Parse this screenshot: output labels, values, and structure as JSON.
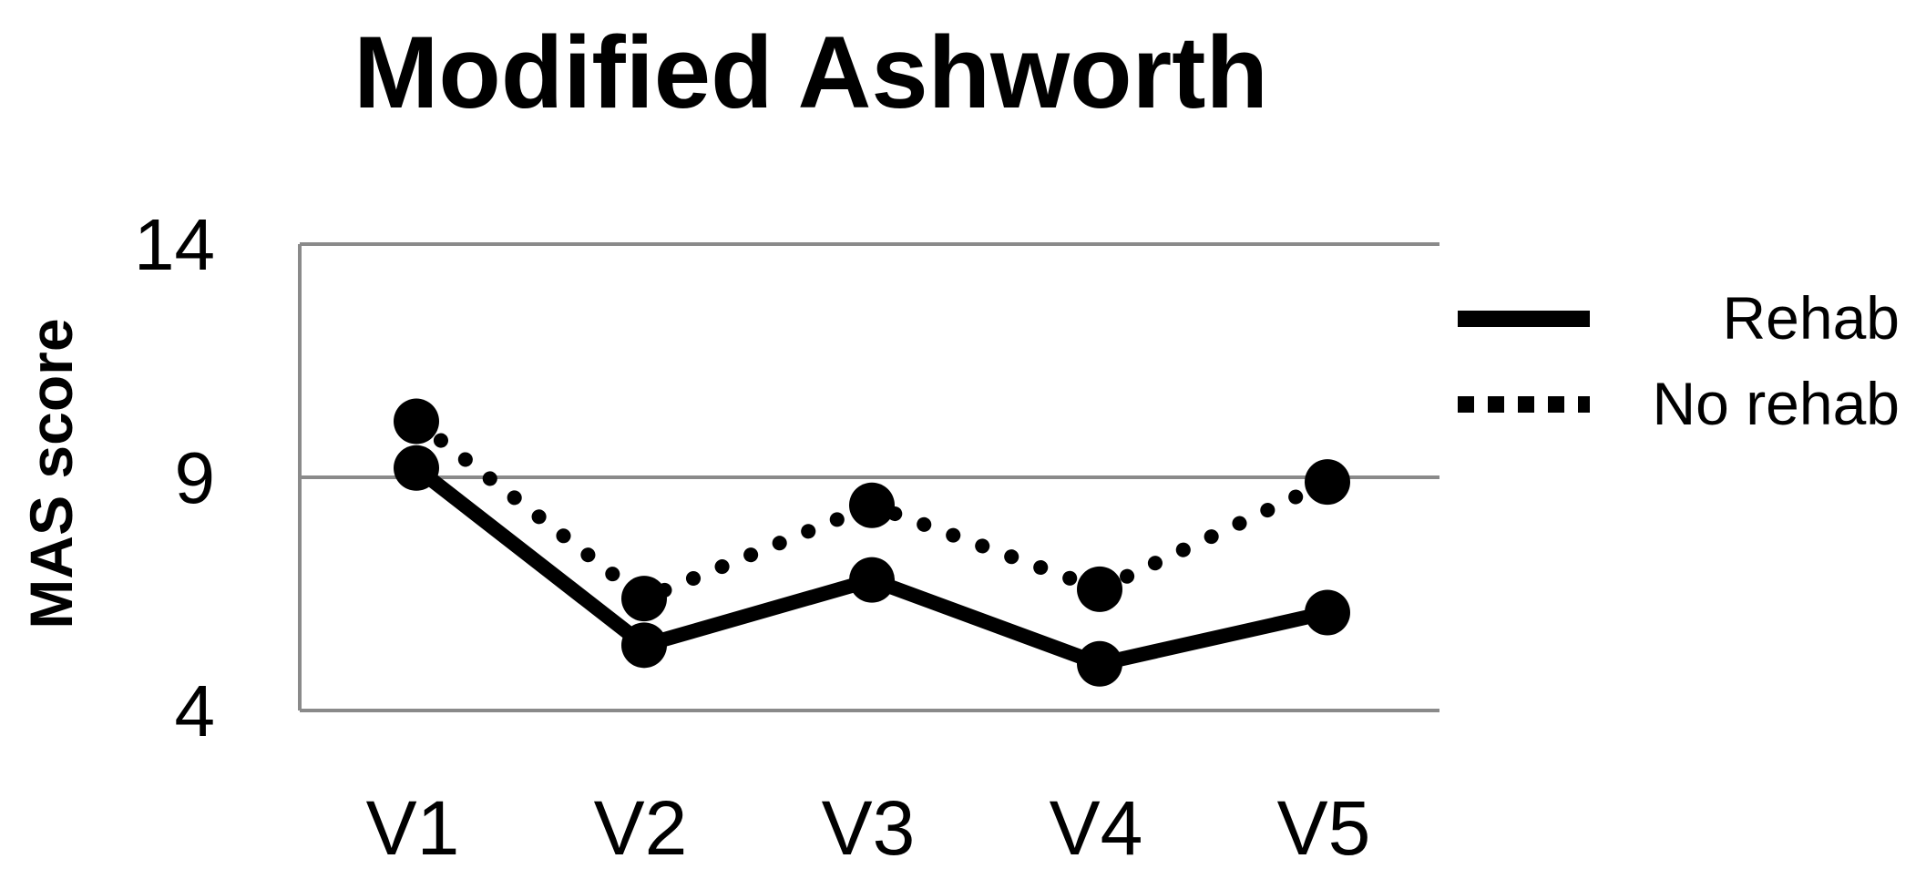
{
  "chart_data": {
    "type": "line",
    "title": "Modified Ashworth",
    "xlabel": "",
    "ylabel": "MAS score",
    "categories": [
      "V1",
      "V2",
      "V3",
      "V4",
      "V5"
    ],
    "ylim": [
      4,
      14
    ],
    "yticks": [
      "4",
      "9",
      "14"
    ],
    "grid": true,
    "legend_position": "right",
    "series": [
      {
        "name": "Rehab",
        "style": "solid",
        "color": "#000000",
        "values": [
          9.2,
          5.4,
          6.8,
          5.0,
          6.1
        ]
      },
      {
        "name": "No rehab",
        "style": "dotted",
        "color": "#000000",
        "values": [
          10.2,
          6.4,
          8.4,
          6.6,
          8.9
        ]
      }
    ]
  }
}
